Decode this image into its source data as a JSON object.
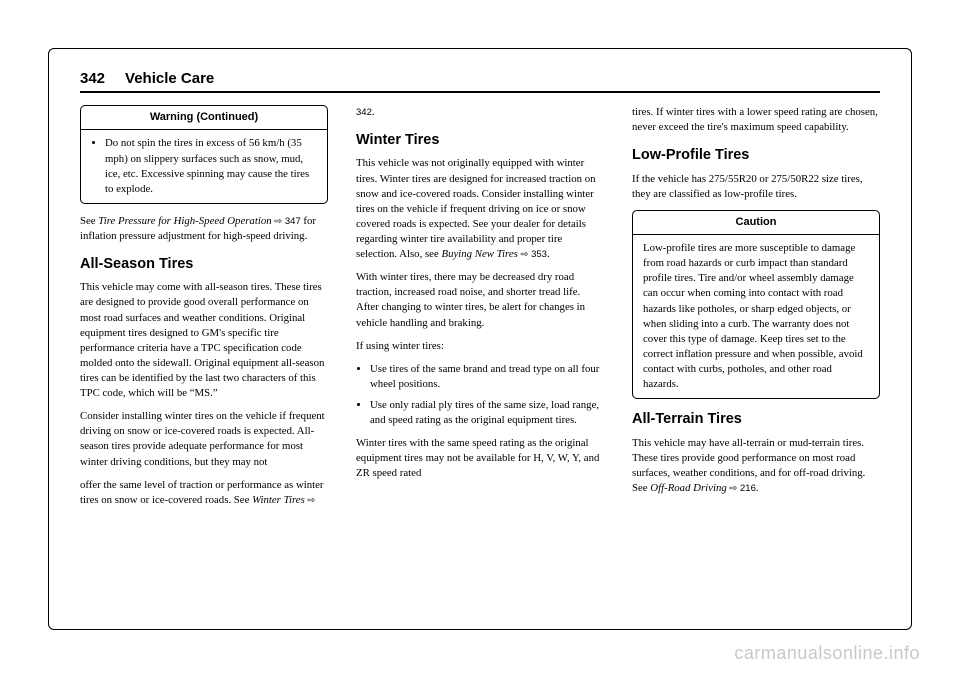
{
  "header": {
    "page_number": "342",
    "chapter": "Vehicle Care"
  },
  "col1": {
    "warning_box": {
      "title": "Warning (Continued)",
      "bullet": "Do not spin the tires in excess of 56 km/h (35 mph) on slippery surfaces such as snow, mud, ice, etc. Excessive spinning may cause the tires to explode."
    },
    "p1a": "See ",
    "p1_italic": "Tire Pressure for High-Speed Operation",
    "p1_xref": " ⇨ 347",
    "p1b": " for inflation pressure adjustment for high-speed driving.",
    "h_allseason": "All-Season Tires",
    "p2": "This vehicle may come with all-season tires. These tires are designed to provide good overall performance on most road surfaces and weather conditions. Original equipment tires designed to GM's specific tire performance criteria have a TPC specification code molded onto the sidewall. Original equipment all-season tires can be identified by the last two characters of this TPC code, which will be “MS.”",
    "p3": "Consider installing winter tires on the vehicle if frequent driving on snow or ice-covered roads is expected. All-season tires provide adequate performance for most winter driving conditions, but they may not"
  },
  "col2": {
    "p1a": "offer the same level of traction or performance as winter tires on snow or ice-covered roads. See ",
    "p1_italic": "Winter Tires",
    "p1_xref": " ⇨ 342",
    "p1b": ".",
    "h_winter": "Winter Tires",
    "p2a": "This vehicle was not originally equipped with winter tires. Winter tires are designed for increased traction on snow and ice-covered roads. Consider installing winter tires on the vehicle if frequent driving on ice or snow covered roads is expected. See your dealer for details regarding winter tire availability and proper tire selection. Also, see ",
    "p2_italic": "Buying New Tires",
    "p2_xref": " ⇨ 353",
    "p2b": ".",
    "p3": "With winter tires, there may be decreased dry road traction, increased road noise, and shorter tread life. After changing to winter tires, be alert for changes in vehicle handling and braking.",
    "p4": "If using winter tires:",
    "b1": "Use tires of the same brand and tread type on all four wheel positions.",
    "b2": "Use only radial ply tires of the same size, load range, and speed rating as the original equipment tires.",
    "p5": "Winter tires with the same speed rating as the original equipment tires may not be available for H, V, W, Y, and ZR speed rated"
  },
  "col3": {
    "p1": "tires. If winter tires with a lower speed rating are chosen, never exceed the tire's maximum speed capability.",
    "h_lowprofile": "Low-Profile Tires",
    "p2": "If the vehicle has 275/55R20 or 275/50R22 size tires, they are classified as low-profile tires.",
    "caution_box": {
      "title": "Caution",
      "body": "Low-profile tires are more susceptible to damage from road hazards or curb impact than standard profile tires. Tire and/or wheel assembly damage can occur when coming into contact with road hazards like potholes, or sharp edged objects, or when sliding into a curb. The warranty does not cover this type of damage. Keep tires set to the correct inflation pressure and when possible, avoid contact with curbs, potholes, and other road hazards."
    },
    "h_allterrain": "All-Terrain Tires",
    "p3a": "This vehicle may have all-terrain or mud-terrain tires. These tires provide good performance on most road surfaces, weather conditions, and for off-road driving. See ",
    "p3_italic": "Off-Road Driving",
    "p3_xref": " ⇨ 216",
    "p3b": "."
  },
  "watermark": "carmanualsonline.info"
}
